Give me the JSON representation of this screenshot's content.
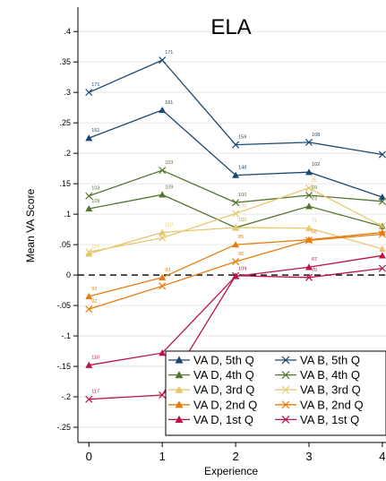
{
  "chart_data": {
    "type": "line",
    "title": "ELA",
    "xlabel": "Experience",
    "ylabel": "Mean VA Score",
    "x": [
      0,
      1,
      2,
      3,
      4
    ],
    "xlim": [
      -0.15,
      4.05
    ],
    "ylim": [
      -0.275,
      0.44
    ],
    "yticks": [
      0.4,
      0.35,
      0.3,
      0.25,
      0.2,
      0.15,
      0.1,
      0.05,
      0,
      -0.05,
      -0.1,
      -0.15,
      -0.2,
      -0.25
    ],
    "ytick_labels": [
      ".4",
      ".35",
      ".3",
      ".25",
      ".2",
      ".15",
      ".1",
      ".05",
      "0",
      "-.05",
      "-.1",
      "-.15",
      "-.2",
      "-.25"
    ],
    "xtick_labels": [
      "0",
      "1",
      "2",
      "3",
      "4"
    ],
    "grid": true,
    "reference_line_y": 0,
    "legend_position": "bottom-right",
    "series": [
      {
        "name": "VA D, 5th Q",
        "color": "#1a476f",
        "marker": "triangle",
        "values": [
          0.225,
          0.271,
          0.164,
          0.169,
          0.128
        ],
        "point_labels": [
          "161",
          "161",
          "148",
          "102",
          ""
        ]
      },
      {
        "name": "VA B, 5th Q",
        "color": "#1a476f",
        "marker": "x",
        "values": [
          0.3,
          0.353,
          0.214,
          0.218,
          0.198
        ],
        "point_labels": [
          "171",
          "171",
          "159",
          "108",
          ""
        ]
      },
      {
        "name": "VA D, 4th Q",
        "color": "#55752f",
        "marker": "triangle",
        "values": [
          0.109,
          0.132,
          0.078,
          0.113,
          0.08
        ],
        "point_labels": [
          "109",
          "109",
          "100",
          "73",
          ""
        ]
      },
      {
        "name": "VA B, 4th Q",
        "color": "#55752f",
        "marker": "x",
        "values": [
          0.13,
          0.172,
          0.119,
          0.131,
          0.121
        ],
        "point_labels": [
          "103",
          "103",
          "100",
          "69",
          ""
        ]
      },
      {
        "name": "VA D, 3rd Q",
        "color": "#e6c870",
        "marker": "triangle",
        "values": [
          0.035,
          0.07,
          0.078,
          0.077,
          0.043
        ],
        "point_labels": [
          "110",
          "110",
          "100",
          "71",
          ""
        ]
      },
      {
        "name": "VA B, 3rd Q",
        "color": "#e6c870",
        "marker": "x",
        "values": [
          0.038,
          0.061,
          0.101,
          0.143,
          0.08
        ],
        "point_labels": [
          "",
          "",
          "100",
          "85",
          ""
        ]
      },
      {
        "name": "VA D, 2nd Q",
        "color": "#e87b0c",
        "marker": "triangle",
        "values": [
          -0.035,
          -0.004,
          0.05,
          0.058,
          0.07
        ],
        "point_labels": [
          "93",
          "93",
          "85",
          "66",
          ""
        ]
      },
      {
        "name": "VA B, 2nd Q",
        "color": "#e87b0c",
        "marker": "x",
        "values": [
          -0.056,
          -0.018,
          0.022,
          0.057,
          0.067
        ],
        "point_labels": [
          "92",
          "",
          "90",
          "",
          ""
        ]
      },
      {
        "name": "VA D, 1st Q",
        "color": "#b81546",
        "marker": "triangle",
        "values": [
          -0.148,
          -0.128,
          -0.002,
          0.013,
          0.032
        ],
        "point_labels": [
          "110",
          "",
          "109",
          "67",
          ""
        ]
      },
      {
        "name": "VA B, 1st Q",
        "color": "#b81546",
        "marker": "x",
        "values": [
          -0.204,
          -0.197,
          -0.001,
          -0.004,
          0.011
        ],
        "point_labels": [
          "117",
          "",
          "",
          "70",
          ""
        ]
      }
    ]
  }
}
